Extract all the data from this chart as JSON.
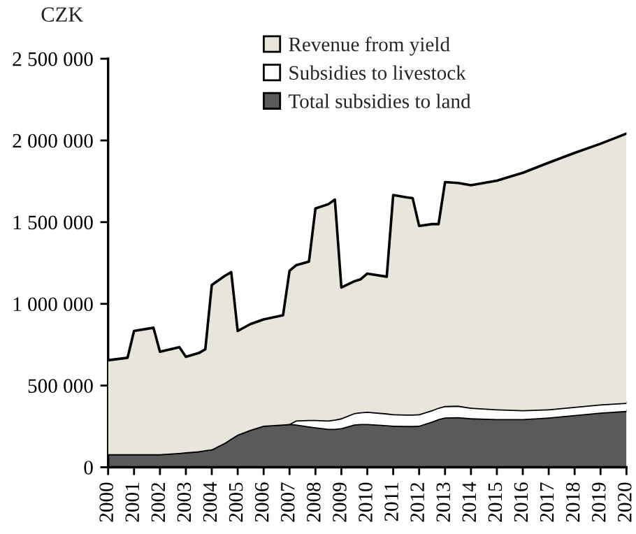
{
  "chart_data": {
    "type": "area",
    "stacked": true,
    "ylabel": "CZK",
    "x": [
      2000.0,
      2000.75,
      2001.0,
      2001.75,
      2002.0,
      2002.75,
      2003.0,
      2003.5,
      2003.75,
      2004.0,
      2004.5,
      2004.75,
      2005.0,
      2005.5,
      2006.0,
      2006.75,
      2007.0,
      2007.25,
      2007.75,
      2008.0,
      2008.5,
      2008.75,
      2009.0,
      2009.5,
      2009.75,
      2010.0,
      2010.75,
      2011.0,
      2011.5,
      2011.75,
      2012.0,
      2012.5,
      2012.75,
      2013.0,
      2013.5,
      2014.0,
      2015.0,
      2016.0,
      2017.0,
      2018.0,
      2019.0,
      2020.0
    ],
    "series": [
      {
        "name": "Total subsidies to land",
        "color": "#5a5a5a",
        "values": [
          80000,
          80000,
          80000,
          80000,
          80000,
          88000,
          92000,
          98000,
          105000,
          110000,
          150000,
          175000,
          200000,
          230000,
          255000,
          262000,
          265000,
          262000,
          250000,
          245000,
          235000,
          235000,
          240000,
          262000,
          265000,
          265000,
          258000,
          255000,
          253000,
          253000,
          255000,
          280000,
          295000,
          305000,
          307000,
          300000,
          295000,
          295000,
          305000,
          320000,
          335000,
          345000
        ]
      },
      {
        "name": "Subsidies to livestock",
        "color": "#ffffff",
        "values": [
          0,
          0,
          0,
          0,
          0,
          0,
          0,
          0,
          0,
          0,
          0,
          0,
          0,
          0,
          0,
          0,
          0,
          25000,
          40000,
          45000,
          52000,
          57000,
          60000,
          70000,
          72000,
          75000,
          72000,
          70000,
          70000,
          70000,
          70000,
          70000,
          70000,
          70000,
          70000,
          65000,
          60000,
          55000,
          50000,
          50000,
          50000,
          50000
        ]
      },
      {
        "name": "Revenue from yield",
        "color": "#e8e6dc",
        "values": [
          575000,
          590000,
          754000,
          774000,
          627000,
          647000,
          584000,
          601000,
          617000,
          1005000,
          1021000,
          1019000,
          634000,
          647000,
          650000,
          668000,
          937000,
          949000,
          969000,
          1294000,
          1323000,
          1346000,
          800000,
          806000,
          814000,
          845000,
          836000,
          1341000,
          1329000,
          1324000,
          1152000,
          1138000,
          1123000,
          1370000,
          1363000,
          1361000,
          1399000,
          1452000,
          1509000,
          1554000,
          1595000,
          1647000
        ]
      }
    ],
    "xlim": [
      2000,
      2020
    ],
    "xticks": [
      2000,
      2001,
      2002,
      2003,
      2004,
      2005,
      2006,
      2007,
      2008,
      2009,
      2010,
      2011,
      2012,
      2013,
      2014,
      2015,
      2016,
      2017,
      2018,
      2019,
      2020
    ],
    "ylim": [
      0,
      2500000
    ],
    "yticks": [
      0,
      {
        "value": 500000,
        "label": "500 000"
      },
      {
        "value": 1000000,
        "label": "1 000 000"
      },
      {
        "value": 1500000,
        "label": "1 500 000"
      },
      {
        "value": 2000000,
        "label": "2 000 000"
      },
      {
        "value": 2500000,
        "label": "2 500 000"
      }
    ],
    "legend": "top",
    "grid": false
  }
}
